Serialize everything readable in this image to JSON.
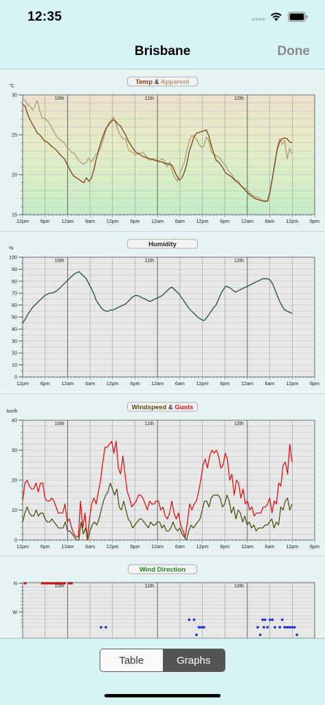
{
  "status": {
    "time": "12:35"
  },
  "nav": {
    "title": "Brisbane",
    "done_label": "Done"
  },
  "tabs": {
    "table_label": "Table",
    "graphs_label": "Graphs",
    "selected": "Graphs"
  },
  "colors": {
    "temp": "#7b3f10",
    "apparent": "#b09a78",
    "humidity": "#1d4b46",
    "windspeed": "#4d4f15",
    "gusts": "#e11212",
    "dir_north": "#c01515",
    "dir_west": "#2433c9"
  },
  "x_ticks": [
    "12pm",
    "6pm",
    "12am",
    "6am",
    "12pm",
    "6pm",
    "12am",
    "6am",
    "12pm",
    "6pm",
    "12am",
    "6am",
    "12pm",
    "6pm"
  ],
  "day_labels": [
    "10th",
    "11th",
    "12th"
  ],
  "chart_data": [
    {
      "type": "line",
      "title_parts": [
        "Temp",
        " & ",
        "Apparent"
      ],
      "unit": "°C",
      "ylim": [
        15,
        30
      ],
      "y_ticks": [
        15,
        20,
        25,
        30
      ],
      "series": [
        {
          "name": "Temp",
          "values": [
            28.8,
            28.6,
            27.6,
            26.9,
            26.3,
            25.8,
            25.2,
            25.0,
            24.6,
            24.2,
            24.1,
            23.8,
            23.5,
            23.3,
            23.0,
            22.6,
            22.3,
            22.0,
            21.4,
            20.8,
            20.2,
            19.8,
            19.6,
            19.4,
            19.2,
            19.0,
            19.6,
            19.2,
            19.5,
            20.5,
            21.9,
            23.1,
            24.1,
            25.0,
            25.8,
            26.2,
            26.6,
            26.9,
            26.7,
            26.3,
            26.1,
            25.5,
            25.0,
            24.3,
            23.8,
            23.3,
            22.9,
            22.7,
            22.5,
            22.3,
            22.2,
            22.1,
            22.0,
            21.9,
            21.8,
            21.7,
            21.6,
            21.6,
            21.4,
            21.4,
            21.3,
            21.2,
            20.5,
            19.8,
            19.3,
            19.6,
            20.3,
            21.3,
            22.9,
            23.8,
            24.8,
            25.2,
            25.3,
            25.4,
            25.5,
            25.6,
            24.9,
            23.7,
            22.7,
            21.8,
            21.6,
            21.2,
            20.7,
            20.2,
            20.0,
            19.8,
            19.5,
            19.2,
            19.0,
            18.7,
            18.4,
            18.0,
            17.7,
            17.4,
            17.2,
            17.0,
            16.9,
            16.8,
            16.7,
            16.7,
            16.7,
            17.9,
            19.6,
            21.5,
            23.2,
            24.2,
            24.5,
            24.6,
            24.5,
            24.1,
            24.0
          ],
          "ranges": [
            0,
            110
          ]
        },
        {
          "name": "Apparent",
          "values": [
            29.5,
            29.3,
            28.8,
            28.6,
            28.1,
            28.6,
            29.3,
            28.0,
            27.1,
            27.1,
            26.8,
            26.4,
            25.8,
            25.3,
            24.7,
            24.5,
            24.2,
            24.0,
            23.5,
            23.2,
            22.8,
            22.7,
            22.2,
            21.7,
            21.5,
            21.3,
            21.6,
            22.1,
            21.6,
            22.0,
            22.6,
            22.8,
            23.5,
            24.5,
            25.6,
            26.4,
            26.8,
            27.2,
            26.5,
            25.5,
            24.9,
            24.5,
            24.5,
            23.3,
            22.9,
            22.8,
            22.5,
            22.6,
            22.7,
            22.8,
            22.5,
            22.0,
            21.8,
            22.0,
            22.0,
            21.7,
            21.8,
            22.0,
            21.7,
            21.0,
            21.6,
            20.6,
            19.7,
            19.2,
            19.8,
            20.8,
            21.5,
            23.0,
            24.2,
            24.9,
            24.8,
            24.5,
            23.8,
            23.4,
            23.6,
            24.7,
            24.3,
            22.9,
            22.6,
            22.4,
            22.2,
            21.9,
            21.4,
            21.2,
            20.5,
            20.2,
            19.7,
            19.3,
            19.3,
            18.6,
            18.3,
            18.3,
            18.0,
            17.6,
            17.4,
            17.2,
            17.2,
            17.0,
            16.7,
            16.6,
            16.7,
            17.7,
            19.5,
            21.4,
            23.5,
            24.5,
            23.8,
            24.3,
            22.0,
            23.3,
            22.6
          ]
        }
      ]
    },
    {
      "type": "line",
      "title": "Humidity",
      "unit": "%",
      "ylim": [
        0,
        100
      ],
      "y_ticks": [
        0,
        10,
        20,
        30,
        40,
        50,
        60,
        70,
        80,
        90,
        100
      ],
      "series": [
        {
          "name": "Humidity",
          "values": [
            45,
            48,
            52,
            55,
            58,
            60,
            62,
            64,
            66,
            68,
            69,
            70,
            70,
            71,
            72,
            74,
            76,
            78,
            80,
            82,
            84,
            86,
            87,
            88,
            86,
            84,
            82,
            78,
            74,
            70,
            64,
            61,
            58,
            56,
            55,
            55,
            56,
            56,
            57,
            58,
            59,
            60,
            61,
            63,
            65,
            67,
            68,
            68,
            67,
            66,
            65,
            64,
            63,
            64,
            65,
            66,
            67,
            68,
            70,
            72,
            74,
            75,
            73,
            71,
            69,
            66,
            63,
            60,
            57,
            55,
            53,
            51,
            49,
            48,
            47,
            49,
            52,
            55,
            58,
            60,
            65,
            70,
            73,
            76,
            75,
            74,
            72,
            71,
            72,
            73,
            74,
            75,
            76,
            77,
            78,
            79,
            80,
            81,
            82,
            82,
            82,
            81,
            78,
            73,
            68,
            63,
            59,
            56,
            55,
            54,
            53
          ]
        }
      ]
    },
    {
      "type": "line",
      "title_parts": [
        "Windspeed",
        " & ",
        "Gusts"
      ],
      "unit": "km/h",
      "ylim": [
        0,
        40
      ],
      "y_ticks": [
        0,
        10,
        20,
        30,
        40
      ],
      "series": [
        {
          "name": "Windspeed",
          "values": [
            6,
            9,
            11,
            9,
            8,
            8,
            10,
            8,
            9,
            9,
            7,
            6,
            6,
            7,
            6,
            5,
            4,
            4,
            4,
            6,
            3,
            3,
            2,
            1,
            0,
            0,
            6,
            2,
            4,
            0,
            3,
            5,
            6,
            5,
            7,
            10,
            13,
            15,
            16,
            19,
            17,
            15,
            17,
            11,
            10,
            13,
            10,
            7,
            6,
            4,
            5,
            6,
            7,
            7,
            6,
            5,
            4,
            6,
            5,
            5,
            6,
            6,
            4,
            5,
            3,
            3,
            4,
            6,
            4,
            3,
            4,
            2,
            1,
            0,
            3,
            5,
            4,
            5,
            6,
            7,
            10,
            13,
            13,
            11,
            14,
            15,
            15,
            15,
            14,
            11,
            12,
            15,
            13,
            9,
            11,
            7,
            10,
            9,
            6,
            8,
            5,
            6,
            4,
            5,
            3,
            4,
            4,
            4,
            5,
            5,
            6,
            7,
            4,
            6,
            5,
            11,
            10,
            13,
            14,
            10,
            12
          ]
        },
        {
          "name": "Gusts",
          "values": [
            13,
            19,
            20,
            18,
            17,
            17,
            19,
            16,
            19,
            19,
            14,
            13,
            13,
            14,
            13,
            11,
            9,
            9,
            9,
            12,
            6,
            7,
            4,
            2,
            1,
            1,
            13,
            4,
            9,
            0,
            7,
            12,
            14,
            12,
            16,
            20,
            26,
            31,
            31,
            32,
            33,
            29,
            33,
            24,
            22,
            28,
            22,
            16,
            14,
            11,
            12,
            13,
            15,
            15,
            14,
            12,
            10,
            13,
            12,
            12,
            13,
            13,
            10,
            11,
            8,
            7,
            9,
            13,
            9,
            7,
            9,
            5,
            3,
            1,
            6,
            12,
            10,
            12,
            13,
            16,
            20,
            25,
            27,
            24,
            28,
            30,
            29,
            30,
            28,
            24,
            25,
            29,
            27,
            20,
            22,
            15,
            20,
            19,
            14,
            17,
            12,
            13,
            10,
            11,
            8,
            9,
            9,
            9,
            11,
            11,
            12,
            14,
            9,
            13,
            12,
            19,
            18,
            25,
            26,
            22,
            32,
            26
          ]
        }
      ]
    },
    {
      "type": "scatter",
      "title": "Wind Direction",
      "y_ticks": [
        "N",
        "W"
      ],
      "points": [
        {
          "series": "N",
          "x": 1,
          "y": "N"
        },
        {
          "series": "N",
          "x": 8,
          "y": "N"
        },
        {
          "series": "N",
          "x": 9,
          "y": "N"
        },
        {
          "series": "N",
          "x": 10,
          "y": "N"
        },
        {
          "series": "N",
          "x": 11,
          "y": "N"
        },
        {
          "series": "N",
          "x": 12,
          "y": "N"
        },
        {
          "series": "N",
          "x": 13,
          "y": "N"
        },
        {
          "series": "N",
          "x": 14,
          "y": "N"
        },
        {
          "series": "N",
          "x": 15,
          "y": "N"
        },
        {
          "series": "N",
          "x": 16,
          "y": "N"
        },
        {
          "series": "N",
          "x": 17,
          "y": "N"
        },
        {
          "series": "N",
          "x": 19,
          "y": "N"
        },
        {
          "series": "N",
          "x": 20,
          "y": "N"
        },
        {
          "series": "W",
          "x": 32,
          "y": "WSW"
        },
        {
          "series": "W",
          "x": 34,
          "y": "WSW"
        },
        {
          "series": "W",
          "x": 68,
          "y": "WNW-"
        },
        {
          "series": "W",
          "x": 70,
          "y": "WNW-"
        },
        {
          "series": "W",
          "x": 71,
          "y": "SW"
        },
        {
          "series": "W",
          "x": 72,
          "y": "WSW"
        },
        {
          "series": "W",
          "x": 73,
          "y": "WSW"
        },
        {
          "series": "W",
          "x": 74,
          "y": "WSW"
        },
        {
          "series": "W",
          "x": 96,
          "y": "WSW"
        },
        {
          "series": "W",
          "x": 97,
          "y": "SW"
        },
        {
          "series": "W",
          "x": 98,
          "y": "WNW-"
        },
        {
          "series": "W",
          "x": 98.5,
          "y": "WSW"
        },
        {
          "series": "W",
          "x": 99,
          "y": "WNW-"
        },
        {
          "series": "W",
          "x": 100,
          "y": "WSW"
        },
        {
          "series": "W",
          "x": 101,
          "y": "WNW-"
        },
        {
          "series": "W",
          "x": 102,
          "y": "WNW-"
        },
        {
          "series": "W",
          "x": 103,
          "y": "WSW"
        },
        {
          "series": "W",
          "x": 105,
          "y": "WSW"
        },
        {
          "series": "W",
          "x": 106,
          "y": "WNW-"
        },
        {
          "series": "W",
          "x": 107,
          "y": "WSW"
        },
        {
          "series": "W",
          "x": 108,
          "y": "WSW"
        },
        {
          "series": "W",
          "x": 109,
          "y": "WSW"
        },
        {
          "series": "W",
          "x": 110,
          "y": "WSW"
        },
        {
          "series": "W",
          "x": 111,
          "y": "WSW"
        },
        {
          "series": "W",
          "x": 112,
          "y": "SW"
        }
      ]
    }
  ]
}
